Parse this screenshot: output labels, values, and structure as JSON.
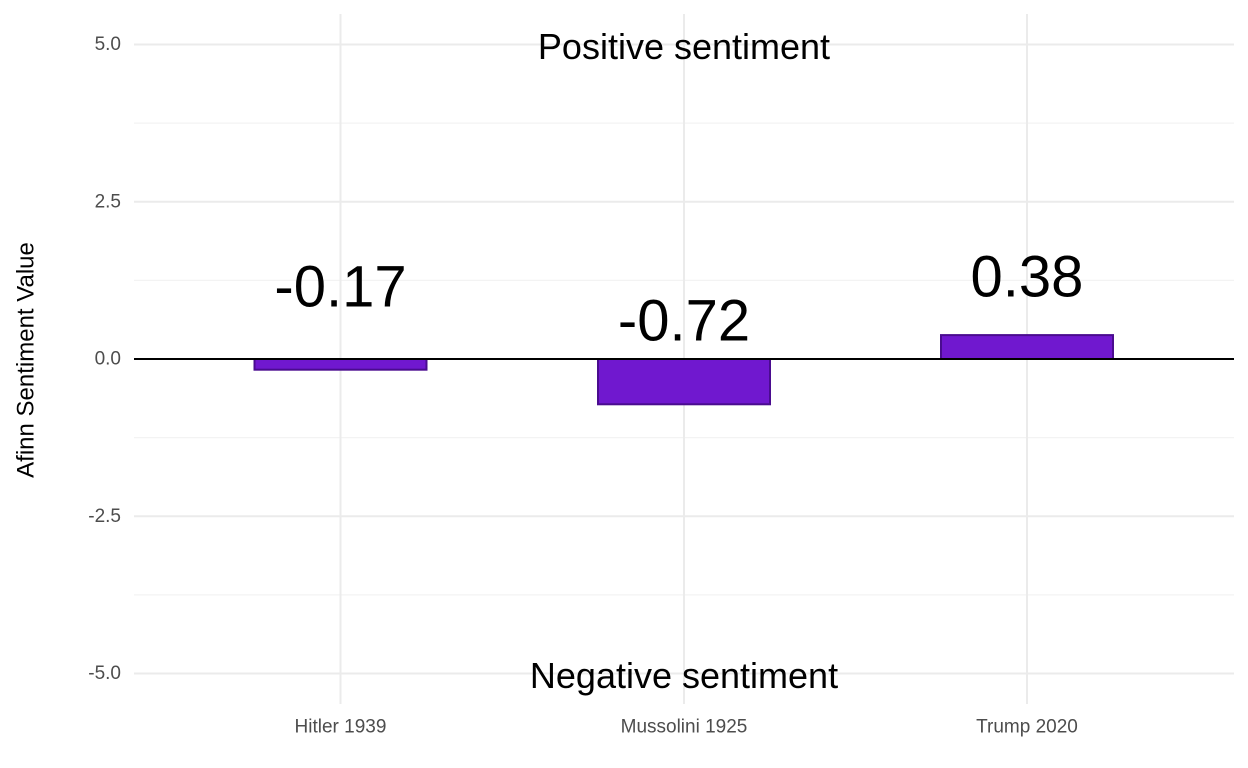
{
  "chart_data": {
    "type": "bar",
    "categories": [
      "Hitler 1939",
      "Mussolini 1925",
      "Trump 2020"
    ],
    "values": [
      -0.17,
      -0.72,
      0.38
    ],
    "data_labels": [
      "-0.17",
      "-0.72",
      "0.38"
    ],
    "title": "",
    "xlabel": "",
    "ylabel": "Afinn Sentiment Value",
    "ylim": [
      -5.5,
      5.5
    ],
    "y_ticks": [
      5.0,
      2.5,
      0.0,
      -2.5,
      -5.0
    ],
    "y_tick_labels": [
      "5.0",
      "2.5",
      "0.0",
      "-2.5",
      "-5.0"
    ],
    "grid": true,
    "legend": "none",
    "annotations": {
      "positive": {
        "text": "Positive sentiment",
        "y": 5.0
      },
      "negative": {
        "text": "Negative sentiment",
        "y": -5.0
      }
    },
    "colors": {
      "bar_fill": "#7018cf",
      "bar_stroke": "#4a0c8f",
      "grid_major": "#ebebeb",
      "grid_minor": "#f3f3f3",
      "zero_line": "#000000"
    }
  }
}
